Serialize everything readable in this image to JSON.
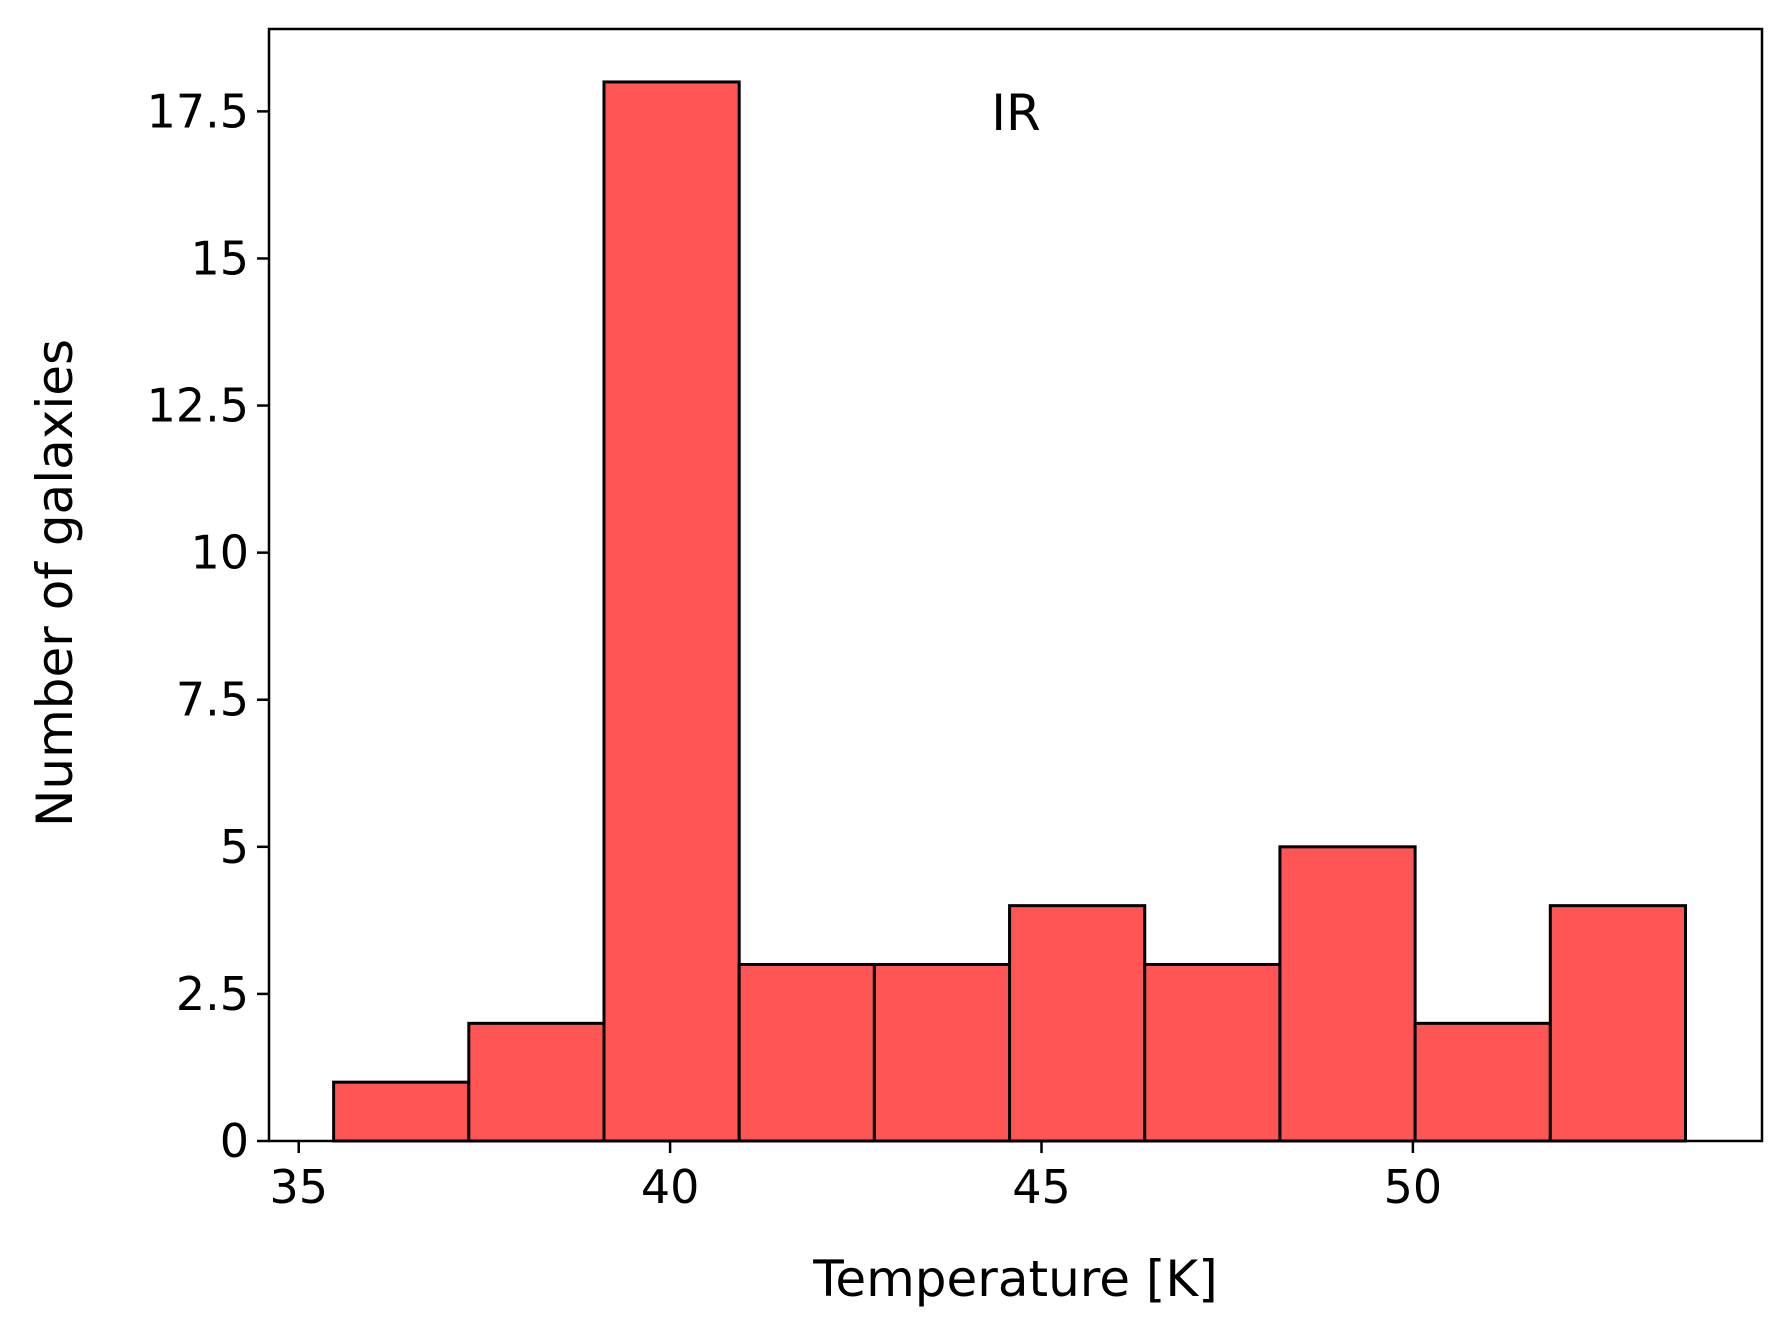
{
  "chart_data": {
    "type": "histogram",
    "annotation": "IR",
    "xlabel": "Temperature [K]",
    "ylabel": "Number of galaxies",
    "xlim": [
      34.6,
      54.7
    ],
    "ylim": [
      0,
      18.9
    ],
    "xticks": [
      35,
      40,
      45,
      50
    ],
    "xtick_labels": [
      "35",
      "40",
      "45",
      "50"
    ],
    "yticks": [
      0,
      2.5,
      5,
      7.5,
      10,
      12.5,
      15,
      17.5
    ],
    "ytick_labels": [
      "0",
      "2.5",
      "5",
      "7.5",
      "10",
      "12.5",
      "15",
      "17.5"
    ],
    "bin_edges": [
      35.47,
      37.29,
      39.11,
      40.93,
      42.75,
      44.57,
      46.39,
      48.21,
      50.03,
      51.85,
      53.67
    ],
    "counts": [
      1,
      2,
      18,
      3,
      3,
      4,
      3,
      5,
      2,
      4
    ],
    "bar_color": "#ff5555",
    "edge_color": "#000000",
    "grid": false
  }
}
